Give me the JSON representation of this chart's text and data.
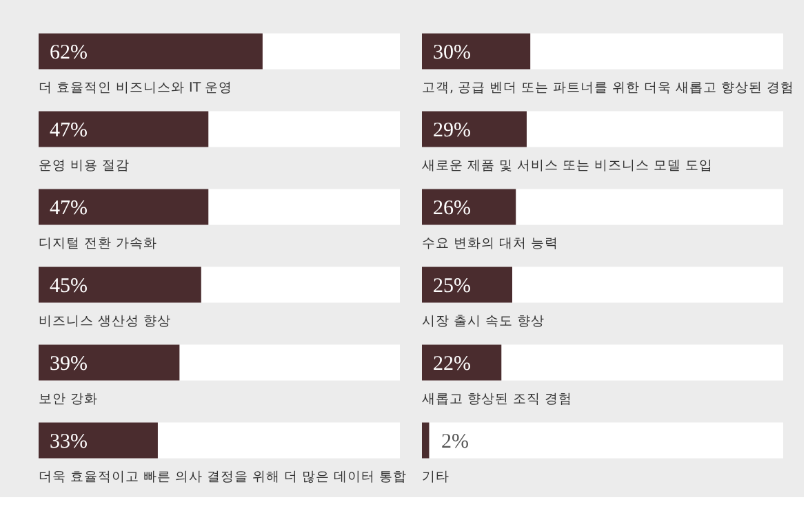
{
  "chart_data": [
    {
      "type": "bar",
      "orientation": "horizontal",
      "categories": [
        "더 효율적인 비즈니스와 IT 운영",
        "운영 비용 절감",
        "디지털 전환 가속화",
        "비즈니스 생산성 향상",
        "보안 강화",
        "더욱 효율적이고 빠른 의사 결정을 위해 더 많은 데이터 통합"
      ],
      "values": [
        62,
        47,
        47,
        45,
        39,
        33
      ],
      "value_labels": [
        "62%",
        "47%",
        "47%",
        "45%",
        "39%",
        "33%"
      ],
      "color": "#4a2c2e",
      "xlim": [
        0,
        100
      ],
      "tick_labels": false
    },
    {
      "type": "bar",
      "orientation": "horizontal",
      "categories": [
        "고객, 공급 벤더 또는 파트너를 위한 더욱 새롭고 향상된 경험",
        "새로운 제품 및 서비스 또는 비즈니스 모델 도입",
        "수요 변화의 대처 능력",
        "시장 출시 속도 향상",
        "새롭고 향상된 조직 경험",
        "기타"
      ],
      "values": [
        30,
        29,
        26,
        25,
        22,
        2
      ],
      "value_labels": [
        "30%",
        "29%",
        "26%",
        "25%",
        "22%",
        "2%"
      ],
      "color": "#4a2c2e",
      "xlim": [
        0,
        100
      ],
      "tick_labels": false
    }
  ]
}
